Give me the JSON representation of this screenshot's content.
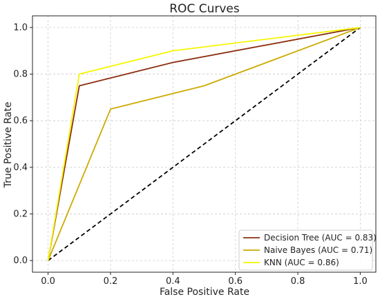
{
  "chart_data": {
    "type": "line",
    "title": "ROC Curves",
    "xlabel": "False Positive Rate",
    "ylabel": "True Positive Rate",
    "xlim": [
      -0.05,
      1.05
    ],
    "ylim": [
      -0.05,
      1.05
    ],
    "xticks": [
      "0.0",
      "0.2",
      "0.4",
      "0.6",
      "0.8",
      "1.0"
    ],
    "yticks": [
      "0.0",
      "0.2",
      "0.4",
      "0.6",
      "0.8",
      "1.0"
    ],
    "grid": true,
    "legend_position": "bottom-right",
    "series": [
      {
        "name": "Decision Tree (AUC = 0.83)",
        "color": "#8b2e0e",
        "x": [
          0.0,
          0.1,
          0.4,
          1.0
        ],
        "y": [
          0.0,
          0.75,
          0.85,
          1.0
        ]
      },
      {
        "name": "Naive Bayes (AUC = 0.71)",
        "color": "#ccaa00",
        "x": [
          0.0,
          0.2,
          0.5,
          1.0
        ],
        "y": [
          0.0,
          0.65,
          0.75,
          1.0
        ]
      },
      {
        "name": "KNN (AUC = 0.86)",
        "color": "#f5f500",
        "x": [
          0.0,
          0.1,
          0.4,
          1.0
        ],
        "y": [
          0.0,
          0.8,
          0.9,
          1.0
        ]
      }
    ],
    "reference_line": {
      "color": "#000000",
      "style": "dashed",
      "x": [
        0.0,
        1.0
      ],
      "y": [
        0.0,
        1.0
      ]
    }
  }
}
